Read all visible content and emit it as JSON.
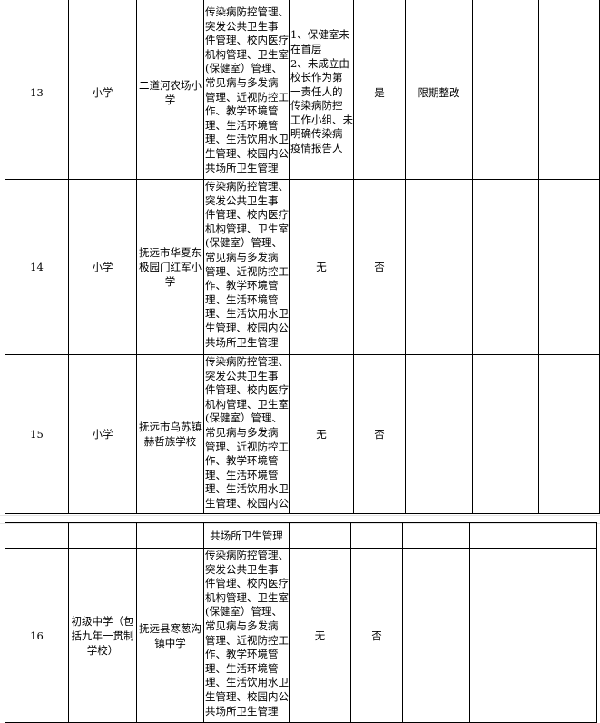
{
  "content_lines": [
    "传染病防控管理、",
    "突发公共卫生事",
    "件管理、校内医疗",
    "机构管理、卫生室",
    "(保健室）管理、",
    "常见病与多发病",
    "管理、近视防控工",
    "作、教学环境管",
    "理、生活环境管",
    "理、生活饮用水卫",
    "生管理、校园内公",
    "共场所卫生管理"
  ],
  "rows": [
    {
      "no": "13",
      "type": "小学",
      "school": "二道河农场小学",
      "issues": [
        "1、保健室未",
        "在首层",
        "2、未成立由",
        "校长作为第",
        "一责任人的",
        "传染病防控",
        "工作小组、未",
        "明确传染病",
        "疫情报告人"
      ],
      "has_issue": "是",
      "action": "限期整改"
    },
    {
      "no": "14",
      "type": "小学",
      "school": "抚远市华夏东极园门红军小学",
      "issues": [
        "无"
      ],
      "has_issue": "否",
      "action": ""
    },
    {
      "no": "15",
      "type": "小学",
      "school": "抚远市乌苏镇赫哲族学校",
      "issues": [
        "无"
      ],
      "has_issue": "否",
      "action": ""
    },
    {
      "no": "16",
      "type": "初级中学（包括九年一贯制学校）",
      "school": "抚远县寒葱沟镇中学",
      "issues": [
        "无"
      ],
      "has_issue": "否",
      "action": ""
    }
  ],
  "continuation_line": "共场所卫生管理"
}
